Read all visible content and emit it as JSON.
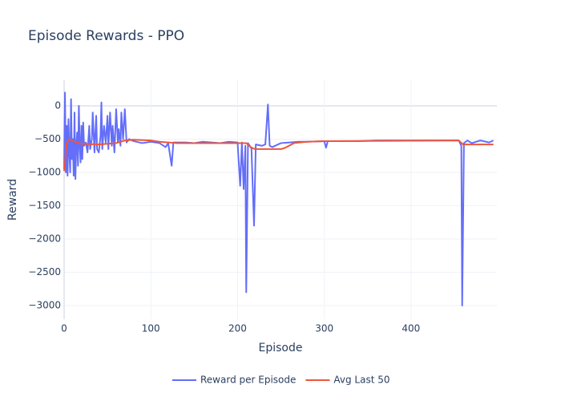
{
  "chart_data": {
    "type": "line",
    "title": "Episode Rewards - PPO",
    "x_label": "Episode",
    "y_label": "Reward",
    "xlim": [
      0,
      499
    ],
    "ylim": [
      -3205,
      385
    ],
    "xticks": [
      0,
      100,
      200,
      300,
      400
    ],
    "yticks": [
      0,
      {
        "value": -500,
        "label": "−500"
      },
      {
        "value": -1000,
        "label": "−1000"
      },
      {
        "value": -1500,
        "label": "−1500"
      },
      {
        "value": -2000,
        "label": "−2000"
      },
      {
        "value": -2500,
        "label": "−2500"
      },
      {
        "value": -3000,
        "label": "−3000"
      }
    ],
    "grid": true,
    "legend": "bottom",
    "series": [
      {
        "name": "Reward per Episode",
        "color": "#636efa",
        "x": [
          0,
          1,
          2,
          3,
          4,
          5,
          6,
          7,
          8,
          9,
          10,
          11,
          12,
          13,
          14,
          15,
          16,
          17,
          18,
          19,
          20,
          21,
          22,
          23,
          25,
          27,
          29,
          30,
          32,
          33,
          35,
          37,
          38,
          40,
          42,
          43,
          44,
          46,
          48,
          50,
          51,
          53,
          55,
          56,
          58,
          60,
          62,
          63,
          65,
          66,
          68,
          70,
          72,
          75,
          80,
          90,
          100,
          110,
          117,
          120,
          124,
          126,
          140,
          150,
          160,
          170,
          180,
          190,
          200,
          203,
          205,
          207,
          209,
          210,
          212,
          216,
          219,
          221,
          228,
          232,
          235,
          237,
          240,
          250,
          260,
          270,
          280,
          300,
          302,
          304,
          320,
          340,
          360,
          380,
          400,
          420,
          440,
          455,
          458,
          459,
          461,
          465,
          470,
          480,
          490,
          495
        ],
        "values": [
          -950,
          200,
          -1000,
          -300,
          -1050,
          -200,
          -700,
          -1000,
          100,
          -800,
          -500,
          -1050,
          -100,
          -1100,
          -600,
          -400,
          -900,
          0,
          -600,
          -850,
          -300,
          -800,
          -250,
          -600,
          -550,
          -700,
          -300,
          -650,
          -500,
          -100,
          -700,
          -150,
          -650,
          -700,
          -450,
          50,
          -650,
          -300,
          -550,
          -150,
          -650,
          -100,
          -600,
          -300,
          -700,
          -50,
          -550,
          -350,
          -600,
          -100,
          -500,
          -50,
          -550,
          -500,
          -530,
          -560,
          -540,
          -560,
          -620,
          -560,
          -900,
          -550,
          -550,
          -560,
          -540,
          -550,
          -560,
          -540,
          -550,
          -1200,
          -550,
          -1250,
          -600,
          -2800,
          -560,
          -640,
          -1800,
          -580,
          -600,
          -580,
          20,
          -600,
          -620,
          -560,
          -550,
          -540,
          -540,
          -530,
          -630,
          -530,
          -530,
          -530,
          -520,
          -520,
          -520,
          -520,
          -520,
          -520,
          -600,
          -3000,
          -560,
          -520,
          -560,
          -520,
          -550,
          -520
        ]
      },
      {
        "name": "Avg Last 50",
        "color": "#ef553b",
        "x": [
          0,
          3,
          6,
          10,
          20,
          40,
          60,
          70,
          80,
          100,
          110,
          130,
          150,
          200,
          210,
          215,
          220,
          250,
          255,
          265,
          280,
          300,
          400,
          455,
          460,
          495
        ],
        "values": [
          -980,
          -560,
          -500,
          -530,
          -570,
          -580,
          -560,
          -520,
          -510,
          -520,
          -540,
          -560,
          -560,
          -560,
          -560,
          -620,
          -650,
          -650,
          -630,
          -560,
          -540,
          -530,
          -525,
          -520,
          -580,
          -580
        ]
      }
    ]
  }
}
